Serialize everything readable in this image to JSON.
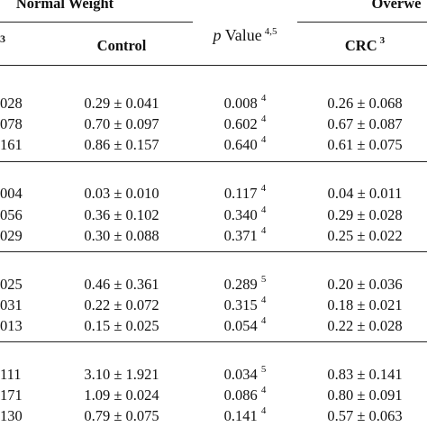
{
  "header": {
    "group_left": "Normal Weight",
    "group_right": "Overwe",
    "cut_left_super": "3",
    "col_control": "Control",
    "col_crc": "CRC",
    "col_crc_super": "3",
    "pvalue_italic": "p",
    "pvalue_word": "Value",
    "pvalue_super": "4,5"
  },
  "sections": [
    {
      "rows": [
        {
          "cut": "028",
          "control": "0.29 ± 0.041",
          "p": "0.008",
          "p_sup": "4",
          "crc": "0.26 ± 0.068"
        },
        {
          "cut": "078",
          "control": "0.70 ± 0.097",
          "p": "0.602",
          "p_sup": "4",
          "crc": "0.67 ± 0.087"
        },
        {
          "cut": "161",
          "control": "0.86 ± 0.157",
          "p": "0.640",
          "p_sup": "4",
          "crc": "0.61 ± 0.075"
        }
      ]
    },
    {
      "rows": [
        {
          "cut": "004",
          "control": "0.03 ± 0.010",
          "p": "0.117",
          "p_sup": "4",
          "crc": "0.04 ± 0.011"
        },
        {
          "cut": "056",
          "control": "0.36 ± 0.102",
          "p": "0.340",
          "p_sup": "4",
          "crc": "0.29 ± 0.028"
        },
        {
          "cut": "029",
          "control": "0.30 ± 0.088",
          "p": "0.371",
          "p_sup": "4",
          "crc": "0.25 ± 0.022"
        }
      ]
    },
    {
      "rows": [
        {
          "cut": "025",
          "control": "0.46 ± 0.361",
          "p": "0.289",
          "p_sup": "5",
          "crc": "0.20 ± 0.036"
        },
        {
          "cut": "031",
          "control": "0.22 ± 0.072",
          "p": "0.315",
          "p_sup": "4",
          "crc": "0.18 ± 0.021"
        },
        {
          "cut": "013",
          "control": "0.15 ± 0.025",
          "p": "0.054",
          "p_sup": "4",
          "crc": "0.22 ± 0.028"
        }
      ]
    },
    {
      "rows": [
        {
          "cut": "111",
          "control": "3.10 ± 1.921",
          "p": "0.034",
          "p_sup": "5",
          "crc": "0.83 ± 0.141"
        },
        {
          "cut": "171",
          "control": "1.09 ± 0.024",
          "p": "0.086",
          "p_sup": "4",
          "crc": "0.80 ± 0.091"
        },
        {
          "cut": "130",
          "control": "0.79 ± 0.075",
          "p": "0.141",
          "p_sup": "4",
          "crc": "0.57 ± 0.063"
        }
      ]
    }
  ]
}
